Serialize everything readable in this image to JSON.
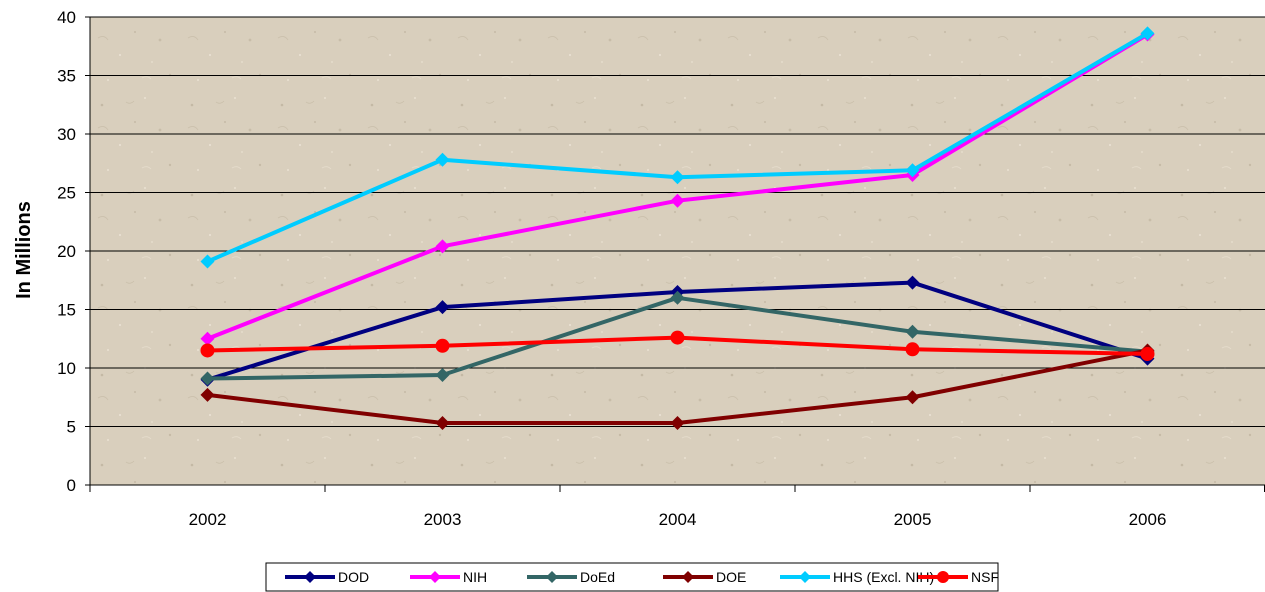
{
  "chart_data": {
    "type": "line",
    "title": "",
    "xlabel": "",
    "ylabel": "In Millions",
    "categories": [
      "2002",
      "2003",
      "2004",
      "2005",
      "2006"
    ],
    "ylim": [
      0,
      40
    ],
    "yticks": [
      0,
      5,
      10,
      15,
      20,
      25,
      30,
      35,
      40
    ],
    "grid": true,
    "legend_position": "bottom",
    "series": [
      {
        "name": "DOD",
        "color": "#000080",
        "marker": "diamond",
        "values": [
          9.0,
          15.2,
          16.5,
          17.3,
          10.8
        ]
      },
      {
        "name": "NIH",
        "color": "#FF00FF",
        "marker": "diamond",
        "values": [
          12.5,
          20.4,
          24.3,
          26.5,
          38.5
        ]
      },
      {
        "name": "DoEd",
        "color": "#336666",
        "marker": "diamond",
        "values": [
          9.1,
          9.4,
          16.0,
          13.1,
          11.4
        ]
      },
      {
        "name": "DOE",
        "color": "#800000",
        "marker": "diamond",
        "values": [
          7.7,
          5.3,
          5.3,
          7.5,
          11.5
        ]
      },
      {
        "name": "HHS (Excl. NIH)",
        "color": "#00CCFF",
        "marker": "diamond",
        "values": [
          19.1,
          27.8,
          26.3,
          26.9,
          38.6
        ]
      },
      {
        "name": "NSF",
        "color": "#FF0000",
        "marker": "circle",
        "values": [
          11.5,
          11.9,
          12.6,
          11.6,
          11.2
        ]
      }
    ]
  }
}
